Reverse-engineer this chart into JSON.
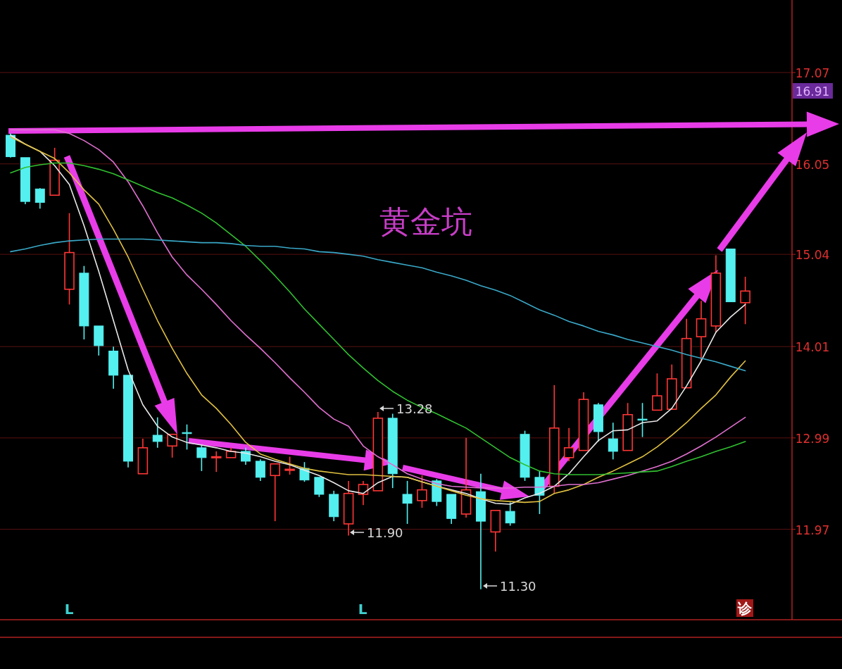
{
  "chart_data": {
    "type": "candlestick",
    "title": "黄金坑",
    "categories": [
      null,
      null,
      null,
      null,
      null,
      null,
      null,
      null,
      null,
      null,
      null,
      null,
      null,
      null,
      null,
      null,
      null,
      null,
      null,
      null,
      null,
      null,
      null,
      null,
      null,
      null,
      null,
      null,
      null,
      null,
      null,
      null,
      null,
      null,
      null,
      null,
      null,
      null,
      null,
      null,
      null,
      null,
      null,
      null,
      null,
      null,
      null,
      null,
      null,
      null,
      null
    ],
    "ohlc": [
      [
        16.37,
        16.39,
        16.12,
        16.13
      ],
      [
        16.12,
        16.12,
        15.6,
        15.63
      ],
      [
        15.77,
        15.78,
        15.55,
        15.62
      ],
      [
        15.7,
        16.23,
        15.7,
        16.09
      ],
      [
        14.65,
        15.5,
        14.48,
        15.06
      ],
      [
        14.83,
        14.91,
        14.09,
        14.24
      ],
      [
        14.24,
        14.24,
        13.91,
        14.02
      ],
      [
        13.96,
        14.01,
        13.54,
        13.69
      ],
      [
        13.69,
        13.69,
        12.66,
        12.73
      ],
      [
        12.59,
        12.98,
        12.59,
        12.88
      ],
      [
        13.02,
        13.22,
        12.88,
        12.95
      ],
      [
        12.9,
        13.03,
        12.77,
        13.03
      ],
      [
        13.05,
        13.14,
        12.86,
        13.04
      ],
      [
        12.88,
        12.91,
        12.62,
        12.77
      ],
      [
        12.77,
        12.84,
        12.61,
        12.78
      ],
      [
        12.77,
        12.88,
        12.77,
        12.84
      ],
      [
        12.84,
        12.88,
        12.69,
        12.73
      ],
      [
        12.73,
        12.75,
        12.51,
        12.55
      ],
      [
        12.57,
        12.7,
        12.06,
        12.7
      ],
      [
        12.63,
        12.78,
        12.58,
        12.64
      ],
      [
        12.65,
        12.72,
        12.5,
        12.52
      ],
      [
        12.55,
        12.55,
        12.33,
        12.36
      ],
      [
        12.36,
        12.4,
        12.06,
        12.11
      ],
      [
        12.03,
        12.51,
        11.9,
        12.37
      ],
      [
        12.36,
        12.51,
        12.24,
        12.47
      ],
      [
        12.4,
        13.28,
        12.4,
        13.21
      ],
      [
        13.21,
        13.26,
        12.43,
        12.59
      ],
      [
        12.36,
        12.51,
        12.03,
        12.26
      ],
      [
        12.29,
        12.57,
        12.21,
        12.41
      ],
      [
        12.51,
        12.53,
        12.23,
        12.28
      ],
      [
        12.36,
        12.36,
        12.03,
        12.09
      ],
      [
        12.14,
        12.99,
        12.1,
        12.41
      ],
      [
        12.39,
        12.59,
        11.3,
        12.06
      ],
      [
        11.94,
        12.18,
        11.72,
        12.18
      ],
      [
        12.17,
        12.27,
        12.01,
        12.04
      ],
      [
        13.03,
        13.07,
        12.51,
        12.55
      ],
      [
        12.55,
        12.62,
        12.14,
        12.35
      ],
      [
        12.45,
        13.58,
        12.37,
        13.1
      ],
      [
        12.77,
        13.1,
        12.73,
        12.88
      ],
      [
        12.85,
        13.5,
        12.85,
        13.42
      ],
      [
        13.36,
        13.38,
        12.95,
        13.06
      ],
      [
        12.98,
        13.16,
        12.75,
        12.84
      ],
      [
        12.85,
        13.38,
        12.85,
        13.25
      ],
      [
        13.2,
        13.38,
        13.0,
        13.19
      ],
      [
        13.3,
        13.71,
        13.3,
        13.46
      ],
      [
        13.31,
        13.81,
        13.31,
        13.65
      ],
      [
        13.55,
        14.32,
        13.55,
        14.1
      ],
      [
        14.12,
        14.52,
        13.85,
        14.32
      ],
      [
        14.24,
        15.03,
        14.16,
        14.83
      ],
      [
        15.1,
        15.1,
        14.51,
        14.51
      ],
      [
        14.5,
        14.79,
        14.26,
        14.63
      ]
    ],
    "series": [
      {
        "type": "line",
        "color": "#e8e8e8",
        "values": [
          16.37,
          16.27,
          16.19,
          16.03,
          15.82,
          15.36,
          14.85,
          14.3,
          13.75,
          13.36,
          13.12,
          13.0,
          12.94,
          12.91,
          12.88,
          12.84,
          12.82,
          12.78,
          12.73,
          12.69,
          12.63,
          12.57,
          12.49,
          12.4,
          12.37,
          12.49,
          12.56,
          12.55,
          12.5,
          12.45,
          12.41,
          12.37,
          12.31,
          12.26,
          12.25,
          12.32,
          12.37,
          12.45,
          12.59,
          12.78,
          12.96,
          13.07,
          13.08,
          13.16,
          13.18,
          13.32,
          13.57,
          13.85,
          14.17,
          14.34,
          14.48
        ]
      },
      {
        "type": "line",
        "color": "#e0c040",
        "values": [
          16.35,
          16.27,
          16.19,
          16.11,
          15.95,
          15.76,
          15.6,
          15.32,
          15.01,
          14.65,
          14.3,
          13.99,
          13.71,
          13.47,
          13.32,
          13.14,
          12.94,
          12.81,
          12.75,
          12.7,
          12.65,
          12.62,
          12.6,
          12.58,
          12.58,
          12.57,
          12.56,
          12.55,
          12.5,
          12.45,
          12.4,
          12.35,
          12.31,
          12.29,
          12.28,
          12.27,
          12.28,
          12.37,
          12.41,
          12.47,
          12.55,
          12.62,
          12.7,
          12.78,
          12.89,
          13.02,
          13.16,
          13.32,
          13.47,
          13.67,
          13.85
        ]
      },
      {
        "type": "line",
        "color": "#e070d0",
        "values": [
          16.43,
          16.43,
          16.43,
          16.43,
          16.39,
          16.31,
          16.21,
          16.07,
          15.85,
          15.58,
          15.28,
          15.01,
          14.81,
          14.65,
          14.48,
          14.3,
          14.14,
          13.99,
          13.83,
          13.66,
          13.5,
          13.33,
          13.2,
          13.12,
          12.9,
          12.78,
          12.69,
          12.59,
          12.53,
          12.48,
          12.45,
          12.44,
          12.43,
          12.43,
          12.43,
          12.44,
          12.44,
          12.45,
          12.47,
          12.47,
          12.49,
          12.53,
          12.57,
          12.62,
          12.67,
          12.73,
          12.81,
          12.9,
          13.0,
          13.11,
          13.22
        ]
      },
      {
        "type": "line",
        "color": "#30c030",
        "values": [
          15.95,
          16.01,
          16.04,
          16.06,
          16.06,
          16.03,
          15.99,
          15.94,
          15.87,
          15.8,
          15.73,
          15.67,
          15.59,
          15.5,
          15.39,
          15.26,
          15.13,
          14.97,
          14.8,
          14.62,
          14.43,
          14.26,
          14.09,
          13.92,
          13.77,
          13.63,
          13.51,
          13.41,
          13.33,
          13.26,
          13.18,
          13.1,
          12.99,
          12.88,
          12.77,
          12.69,
          12.62,
          12.59,
          12.58,
          12.58,
          12.58,
          12.59,
          12.6,
          12.61,
          12.62,
          12.67,
          12.73,
          12.78,
          12.84,
          12.89,
          12.95
        ]
      },
      {
        "type": "line",
        "color": "#3aa8c8",
        "values": [
          15.07,
          15.1,
          15.14,
          15.17,
          15.19,
          15.2,
          15.21,
          15.21,
          15.21,
          15.21,
          15.2,
          15.19,
          15.18,
          15.17,
          15.17,
          15.16,
          15.14,
          15.13,
          15.13,
          15.11,
          15.1,
          15.07,
          15.06,
          15.04,
          15.02,
          14.98,
          14.95,
          14.92,
          14.89,
          14.84,
          14.8,
          14.75,
          14.69,
          14.64,
          14.58,
          14.5,
          14.42,
          14.36,
          14.29,
          14.24,
          14.18,
          14.14,
          14.09,
          14.05,
          14.01,
          13.97,
          13.92,
          13.88,
          13.84,
          13.79,
          13.74
        ]
      }
    ],
    "ylim": [
      10.96,
      17.88
    ],
    "yticks": [
      {
        "value": 17.07,
        "label": "17.07"
      },
      {
        "value": 16.05,
        "label": "16.05"
      },
      {
        "value": 15.04,
        "label": "15.04"
      },
      {
        "value": 14.01,
        "label": "14.01"
      },
      {
        "value": 12.99,
        "label": "12.99"
      },
      {
        "value": 11.97,
        "label": "11.97"
      }
    ],
    "grid": "y",
    "annotations": [
      "13.28",
      "11.90",
      "11.30",
      "16.91",
      "L",
      "L",
      "诊"
    ]
  }
}
